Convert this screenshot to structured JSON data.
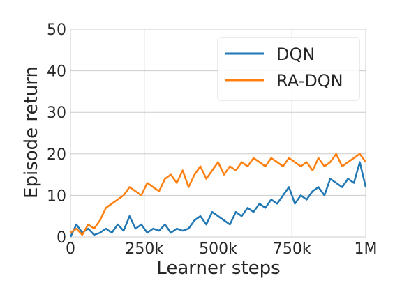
{
  "chart_data": {
    "type": "line",
    "xlabel": "Learner steps",
    "ylabel": "Episode return",
    "xlim": [
      0,
      1000000
    ],
    "ylim": [
      0,
      50
    ],
    "xticks": [
      0,
      250000,
      500000,
      750000,
      1000000
    ],
    "xtick_labels": [
      "0",
      "250k",
      "500k",
      "750k",
      "1M"
    ],
    "yticks": [
      0,
      10,
      20,
      30,
      40,
      50
    ],
    "ytick_labels": [
      "0",
      "10",
      "20",
      "30",
      "40",
      "50"
    ],
    "grid": true,
    "legend_position": "top-right",
    "series": [
      {
        "name": "DQN",
        "color": "#1f77b4",
        "x": [
          0,
          20000,
          40000,
          60000,
          80000,
          100000,
          120000,
          140000,
          160000,
          180000,
          200000,
          220000,
          240000,
          260000,
          280000,
          300000,
          320000,
          340000,
          360000,
          380000,
          400000,
          420000,
          440000,
          460000,
          480000,
          500000,
          520000,
          540000,
          560000,
          580000,
          600000,
          620000,
          640000,
          660000,
          680000,
          700000,
          720000,
          740000,
          760000,
          780000,
          800000,
          820000,
          840000,
          860000,
          880000,
          900000,
          920000,
          940000,
          960000,
          980000,
          1000000
        ],
        "values": [
          0,
          3,
          1,
          2,
          0.5,
          1,
          2,
          1,
          3,
          1.5,
          5,
          2,
          3,
          1,
          2,
          1.5,
          3,
          1,
          2,
          1.5,
          2,
          4,
          5,
          3,
          6,
          5,
          4,
          3,
          6,
          5,
          7,
          6,
          8,
          7,
          9,
          8,
          10,
          12,
          8,
          10,
          9,
          11,
          12,
          10,
          14,
          13,
          12,
          14,
          13,
          18,
          12
        ]
      },
      {
        "name": "RA-DQN",
        "color": "#ff7f0e",
        "x": [
          0,
          20000,
          40000,
          60000,
          80000,
          100000,
          120000,
          140000,
          160000,
          180000,
          200000,
          220000,
          240000,
          260000,
          280000,
          300000,
          320000,
          340000,
          360000,
          380000,
          400000,
          420000,
          440000,
          460000,
          480000,
          500000,
          520000,
          540000,
          560000,
          580000,
          600000,
          620000,
          640000,
          660000,
          680000,
          700000,
          720000,
          740000,
          760000,
          780000,
          800000,
          820000,
          840000,
          860000,
          880000,
          900000,
          920000,
          940000,
          960000,
          980000,
          1000000
        ],
        "values": [
          1,
          2,
          0.5,
          3,
          2,
          4,
          7,
          8,
          9,
          10,
          12,
          11,
          10,
          13,
          12,
          11,
          14,
          15,
          13,
          16,
          12,
          15,
          17,
          14,
          16,
          18,
          15,
          17,
          16,
          18,
          17,
          19,
          18,
          17,
          19,
          18,
          17,
          19,
          18,
          17,
          18,
          16,
          19,
          17,
          18,
          20,
          17,
          18,
          19,
          20,
          18
        ]
      }
    ]
  }
}
